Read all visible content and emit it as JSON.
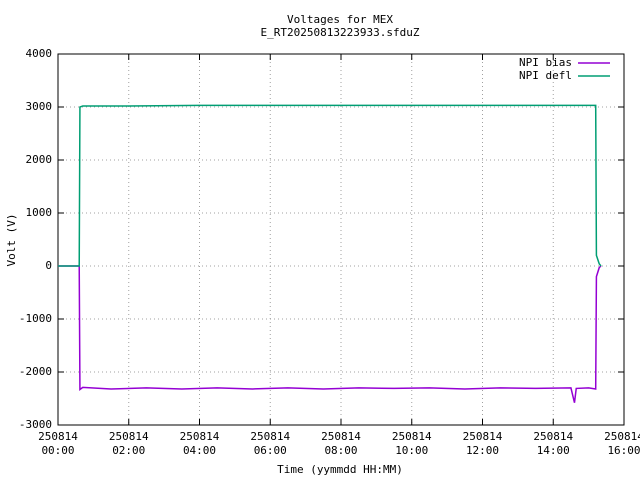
{
  "chart_data": {
    "type": "line",
    "title": "Voltages for MEX",
    "subtitle": "E_RT20250813223933.sfduZ",
    "x_label": "Time (yymmdd HH:MM)",
    "y_label": "Volt (V)",
    "xlim": [
      0,
      16
    ],
    "xticks": [
      {
        "value": 0,
        "date": "250814",
        "label": "00:00"
      },
      {
        "value": 2,
        "date": "250814",
        "label": "02:00"
      },
      {
        "value": 4,
        "date": "250814",
        "label": "04:00"
      },
      {
        "value": 6,
        "date": "250814",
        "label": "06:00"
      },
      {
        "value": 8,
        "date": "250814",
        "label": "08:00"
      },
      {
        "value": 10,
        "date": "250814",
        "label": "10:00"
      },
      {
        "value": 12,
        "date": "250814",
        "label": "12:00"
      },
      {
        "value": 14,
        "date": "250814",
        "label": "14:00"
      },
      {
        "value": 16,
        "date": "250814",
        "label": "16:00"
      }
    ],
    "ylim": [
      -3000,
      4000
    ],
    "yticks": [
      -3000,
      -2000,
      -1000,
      0,
      1000,
      2000,
      3000,
      4000
    ],
    "grid": true,
    "legend": "top-right",
    "series": [
      {
        "name": "NPI bias",
        "color": "#9400d3",
        "x": [
          0,
          0.6,
          0.62,
          0.7,
          1.5,
          2.5,
          3.5,
          4.5,
          5.5,
          6.5,
          7.5,
          8.5,
          9.5,
          10.5,
          11.5,
          12.5,
          13.5,
          14.5,
          14.6,
          14.65,
          15.0,
          15.2,
          15.22,
          15.3,
          15.35
        ],
        "values": [
          0,
          0,
          -2330,
          -2290,
          -2320,
          -2300,
          -2320,
          -2300,
          -2320,
          -2300,
          -2320,
          -2300,
          -2310,
          -2300,
          -2320,
          -2300,
          -2310,
          -2300,
          -2580,
          -2310,
          -2300,
          -2320,
          -200,
          -30,
          0
        ]
      },
      {
        "name": "NPI defl",
        "color": "#009e73",
        "x": [
          0,
          0.6,
          0.62,
          0.7,
          2,
          4,
          6,
          8,
          10,
          12,
          14,
          15.2,
          15.22,
          15.3,
          15.35
        ],
        "values": [
          0,
          0,
          3000,
          3020,
          3020,
          3030,
          3030,
          3030,
          3030,
          3030,
          3030,
          3030,
          200,
          40,
          0
        ]
      }
    ]
  }
}
